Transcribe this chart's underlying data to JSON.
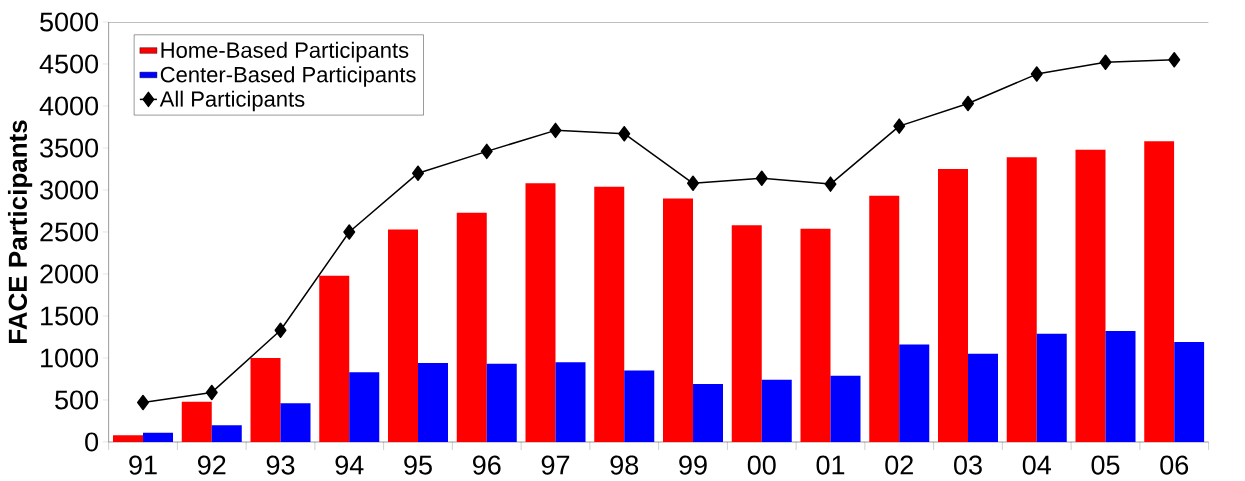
{
  "chart_data": {
    "type": "bar",
    "ylabel": "FACE Participants",
    "categories": [
      "91",
      "92",
      "93",
      "94",
      "95",
      "96",
      "97",
      "98",
      "99",
      "00",
      "01",
      "02",
      "03",
      "04",
      "05",
      "06"
    ],
    "series": [
      {
        "name": "Home-Based Participants",
        "color": "#ff0000",
        "values": [
          80,
          480,
          1000,
          1980,
          2530,
          2730,
          3080,
          3040,
          2900,
          2580,
          2540,
          2930,
          3250,
          3390,
          3480,
          3580
        ]
      },
      {
        "name": "Center-Based Participants",
        "color": "#0000ff",
        "values": [
          110,
          200,
          460,
          830,
          940,
          930,
          950,
          850,
          690,
          740,
          790,
          1160,
          1050,
          1290,
          1320,
          1190
        ]
      },
      {
        "name": "All Participants",
        "type": "line",
        "color": "#000000",
        "marker": "diamond",
        "line_style": "solid",
        "values": [
          470,
          590,
          1330,
          2500,
          3200,
          3460,
          3710,
          3670,
          3080,
          3140,
          3070,
          3760,
          4030,
          4380,
          4520,
          4550
        ]
      }
    ],
    "ylim": [
      0,
      5000
    ],
    "yticks": [
      0,
      500,
      1000,
      1500,
      2000,
      2500,
      3000,
      3500,
      4000,
      4500,
      5000
    ],
    "grid": false,
    "legend": "top left"
  }
}
